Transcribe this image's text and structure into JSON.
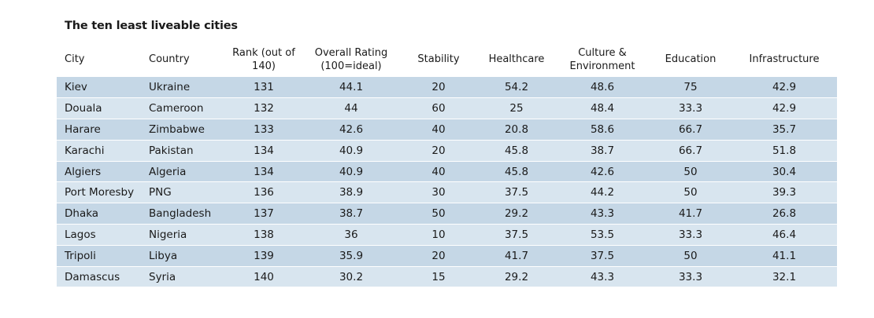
{
  "chart_data": {
    "type": "table",
    "title": "The ten least liveable cities",
    "columns": [
      "City",
      "Country",
      "Rank (out of 140)",
      "Overall Rating (100=ideal)",
      "Stability",
      "Healthcare",
      "Culture & Environment",
      "Education",
      "Infrastructure"
    ],
    "header_lines": [
      [
        "City"
      ],
      [
        "Country"
      ],
      [
        "Rank (out of",
        "140)"
      ],
      [
        "Overall Rating",
        "(100=ideal)"
      ],
      [
        "Stability"
      ],
      [
        "Healthcare"
      ],
      [
        "Culture &",
        "Environment"
      ],
      [
        "Education"
      ],
      [
        "Infrastructure"
      ]
    ],
    "rows": [
      [
        "Kiev",
        "Ukraine",
        "131",
        "44.1",
        "20",
        "54.2",
        "48.6",
        "75",
        "42.9"
      ],
      [
        "Douala",
        "Cameroon",
        "132",
        "44",
        "60",
        "25",
        "48.4",
        "33.3",
        "42.9"
      ],
      [
        "Harare",
        "Zimbabwe",
        "133",
        "42.6",
        "40",
        "20.8",
        "58.6",
        "66.7",
        "35.7"
      ],
      [
        "Karachi",
        "Pakistan",
        "134",
        "40.9",
        "20",
        "45.8",
        "38.7",
        "66.7",
        "51.8"
      ],
      [
        "Algiers",
        "Algeria",
        "134",
        "40.9",
        "40",
        "45.8",
        "42.6",
        "50",
        "30.4"
      ],
      [
        "Port Moresby",
        "PNG",
        "136",
        "38.9",
        "30",
        "37.5",
        "44.2",
        "50",
        "39.3"
      ],
      [
        "Dhaka",
        "Bangladesh",
        "137",
        "38.7",
        "50",
        "29.2",
        "43.3",
        "41.7",
        "26.8"
      ],
      [
        "Lagos",
        "Nigeria",
        "138",
        "36",
        "10",
        "37.5",
        "53.5",
        "33.3",
        "46.4"
      ],
      [
        "Tripoli",
        "Libya",
        "139",
        "35.9",
        "20",
        "41.7",
        "37.5",
        "50",
        "41.1"
      ],
      [
        "Damascus",
        "Syria",
        "140",
        "30.2",
        "15",
        "29.2",
        "43.3",
        "33.3",
        "32.1"
      ]
    ],
    "row_fill_colors": [
      "#c5d7e6",
      "#d8e5ef"
    ]
  }
}
